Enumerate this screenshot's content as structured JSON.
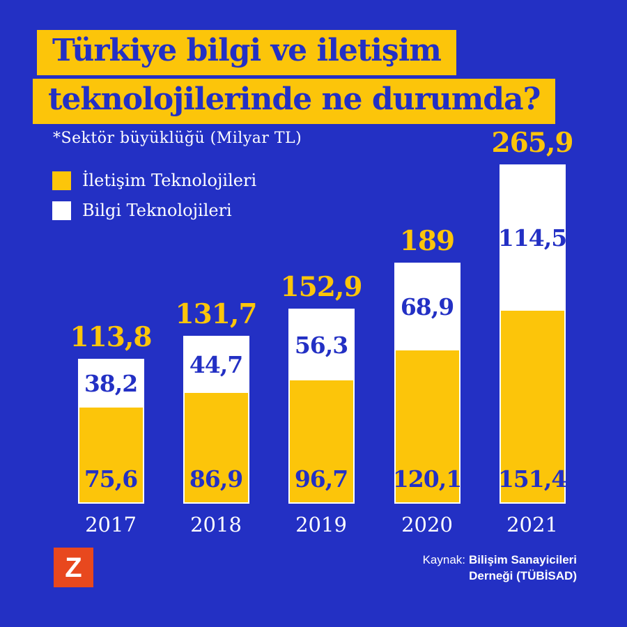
{
  "colors": {
    "background": "#2330C4",
    "accent_yellow": "#FCC50A",
    "white": "#FFFFFF",
    "logo_red": "#E8481E",
    "title_text": "#2330C4"
  },
  "title": {
    "line1": "Türkiye bilgi ve iletişim",
    "line2": "teknolojilerinde ne durumda?"
  },
  "subtitle": "*Sektör büyüklüğü (Milyar TL)",
  "legend": [
    {
      "label": "İletişim Teknolojileri",
      "color": "#FCC50A"
    },
    {
      "label": "Bilgi Teknolojileri",
      "color": "#FFFFFF"
    }
  ],
  "logo": {
    "letter": "Z"
  },
  "source": {
    "prefix": "Kaynak:",
    "line1_bold": "Bilişim Sanayicileri",
    "line2_bold": "Derneği (TÜBİSAD)"
  },
  "chart_data": {
    "type": "bar",
    "stacked": true,
    "title": "Türkiye bilgi ve iletişim teknolojilerinde ne durumda?",
    "unit": "Milyar TL",
    "categories": [
      "2017",
      "2018",
      "2019",
      "2020",
      "2021"
    ],
    "series": [
      {
        "name": "İletişim Teknolojileri",
        "color": "#FCC50A",
        "values": [
          75.6,
          86.9,
          96.7,
          120.1,
          151.4
        ],
        "labels": [
          "75,6",
          "86,9",
          "96,7",
          "120,1",
          "151,4"
        ]
      },
      {
        "name": "Bilgi Teknolojileri",
        "color": "#FFFFFF",
        "values": [
          38.2,
          44.7,
          56.3,
          68.9,
          114.5
        ],
        "labels": [
          "38,2",
          "44,7",
          "56,3",
          "68,9",
          "114,5"
        ]
      }
    ],
    "totals": [
      113.8,
      131.7,
      152.9,
      189,
      265.9
    ],
    "total_labels": [
      "113,8",
      "131,7",
      "152,9",
      "189",
      "265,9"
    ],
    "ylim": [
      0,
      280
    ],
    "grid": false,
    "legend_position": "top-left",
    "value_format": "comma-decimal"
  }
}
